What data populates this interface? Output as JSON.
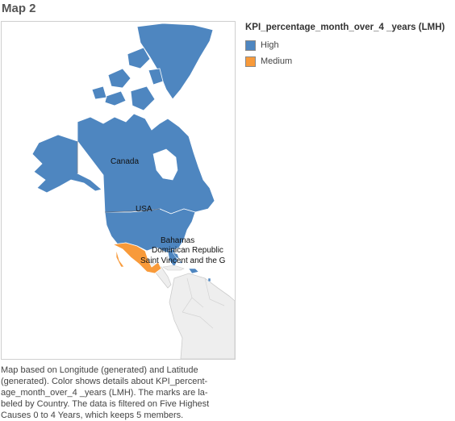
{
  "title": "Map 2",
  "legend": {
    "title": "KPI_percentage_month_over_4 _years (LMH)",
    "items": [
      {
        "label": "High",
        "color": "#4e86c0"
      },
      {
        "label": "Medium",
        "color": "#f89a3a"
      }
    ]
  },
  "map": {
    "labels": {
      "canada": "Canada",
      "usa": "USA",
      "bahamas": "Bahamas",
      "dominican": "Dominican Republic",
      "stvincent": "Saint Vincent and the G"
    },
    "colors": {
      "land_other": "#eeeeee",
      "border_other": "#cccccc"
    }
  },
  "caption": {
    "line1": "Map based on Longitude (generated) and Latitude",
    "line2": "(generated).  Color shows details about KPI_percent-",
    "line3": "age_month_over_4 _years (LMH).  The marks are la-",
    "line4": "beled by Country. The data is filtered on Five Highest",
    "line5": "Causes 0 to 4 Years, which keeps 5 members."
  }
}
